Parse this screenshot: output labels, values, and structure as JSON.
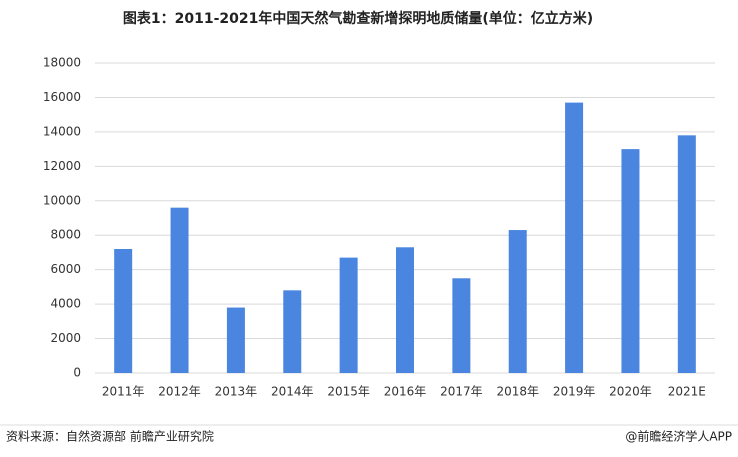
{
  "chart_data": {
    "type": "bar",
    "title": "图表1：2011-2021年中国天然气勘查新增探明地质储量(单位：亿立方米)",
    "categories": [
      "2011年",
      "2012年",
      "2013年",
      "2014年",
      "2015年",
      "2016年",
      "2017年",
      "2018年",
      "2019年",
      "2020年",
      "2021E"
    ],
    "values": [
      7200,
      9600,
      3800,
      4800,
      6700,
      7300,
      5500,
      8300,
      15700,
      13000,
      13800
    ],
    "color": "#4a86e0",
    "ylim": [
      0,
      18000
    ],
    "yticks": [
      0,
      2000,
      4000,
      6000,
      8000,
      10000,
      12000,
      14000,
      16000,
      18000
    ],
    "grid": true,
    "source": "资料来源：自然资源部 前瞻产业研究院",
    "credit": "@前瞻经济学人APP"
  }
}
